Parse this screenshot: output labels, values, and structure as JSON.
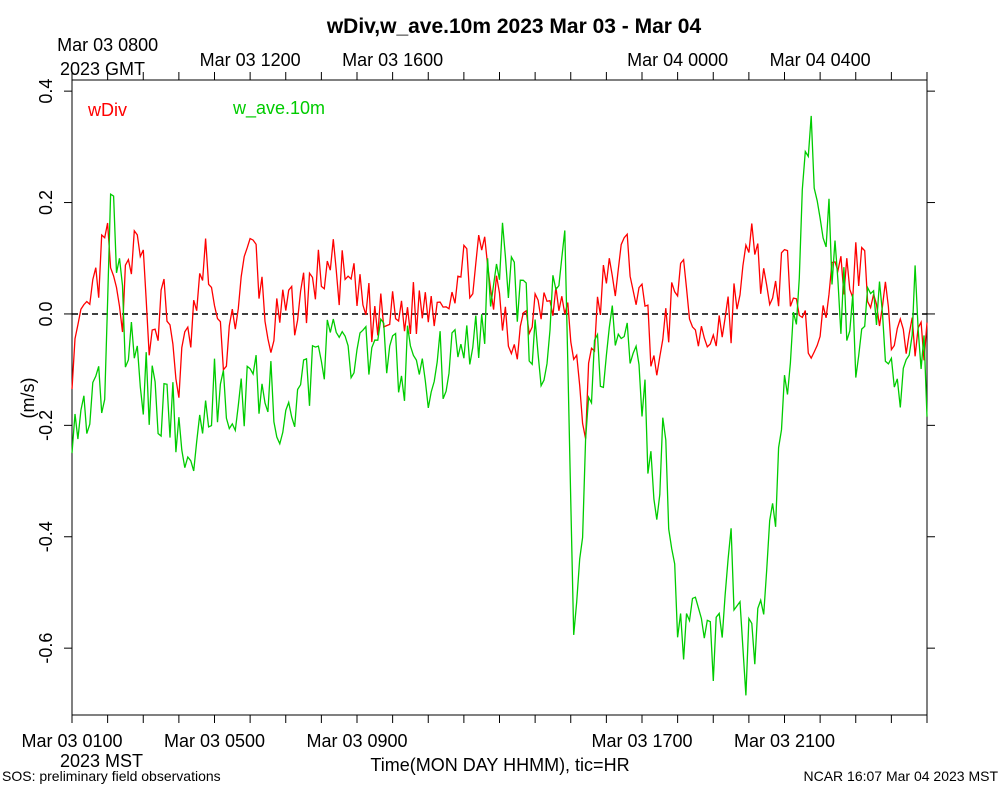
{
  "chart_data": {
    "type": "line",
    "title": "wDiv,w_ave.10m 2023 Mar 03 - Mar 04",
    "xlabel": "Time(MON DAY HHMM), tic=HR",
    "ylabel": "(m/s)",
    "ylim": [
      -0.72,
      0.42
    ],
    "yticks": [
      -0.6,
      -0.4,
      -0.2,
      0.0,
      0.2,
      0.4
    ],
    "ytick_labels": [
      "-0.6",
      "-0.4",
      "-0.2",
      "0.0",
      "0.2",
      "0.4"
    ],
    "zero_line": 0.0,
    "x_hours_range": [
      0,
      24
    ],
    "x_minor_tick_hours": [
      0,
      1,
      2,
      3,
      4,
      5,
      6,
      7,
      8,
      9,
      10,
      11,
      12,
      13,
      14,
      15,
      16,
      17,
      18,
      19,
      20,
      21,
      22,
      23,
      24
    ],
    "bottom_axis": {
      "labels": [
        {
          "hour": 0,
          "text": "Mar 03 0100"
        },
        {
          "hour": 4,
          "text": "Mar 03 0500"
        },
        {
          "hour": 8,
          "text": "Mar 03 0900"
        },
        {
          "hour": 16,
          "text": "Mar 03 1700"
        },
        {
          "hour": 20,
          "text": "Mar 03 2100"
        }
      ],
      "zone_label": "2023 MST"
    },
    "top_axis": {
      "labels": [
        {
          "hour": 1,
          "text": "Mar 03 0800"
        },
        {
          "hour": 5,
          "text": "Mar 03 1200"
        },
        {
          "hour": 9,
          "text": "Mar 03 1600"
        },
        {
          "hour": 17,
          "text": "Mar 04 0000"
        },
        {
          "hour": 21,
          "text": "Mar 04 0400"
        }
      ],
      "zone_label": "2023 GMT"
    },
    "series": [
      {
        "name": "wDiv",
        "color": "#ff0000",
        "keypoints": [
          [
            0.0,
            -0.08
          ],
          [
            0.4,
            -0.02
          ],
          [
            1.0,
            0.13
          ],
          [
            1.3,
            -0.02
          ],
          [
            2.0,
            0.17
          ],
          [
            2.1,
            -0.05
          ],
          [
            2.6,
            0.02
          ],
          [
            3.0,
            -0.12
          ],
          [
            3.8,
            0.1
          ],
          [
            4.2,
            -0.08
          ],
          [
            5.1,
            0.13
          ],
          [
            5.5,
            -0.04
          ],
          [
            6.5,
            0.03
          ],
          [
            7.2,
            0.09
          ],
          [
            8.0,
            0.03
          ],
          [
            8.6,
            -0.02
          ],
          [
            10.0,
            0.02
          ],
          [
            11.5,
            0.1
          ],
          [
            12.3,
            -0.05
          ],
          [
            13.4,
            0.06
          ],
          [
            14.0,
            -0.03
          ],
          [
            14.4,
            -0.19
          ],
          [
            14.8,
            0.03
          ],
          [
            15.6,
            0.11
          ],
          [
            16.0,
            0.02
          ],
          [
            16.5,
            -0.1
          ],
          [
            17.0,
            0.08
          ],
          [
            17.6,
            -0.05
          ],
          [
            18.5,
            0.0
          ],
          [
            19.2,
            0.14
          ],
          [
            19.6,
            -0.03
          ],
          [
            20.0,
            0.12
          ],
          [
            20.5,
            -0.06
          ],
          [
            21.3,
            0.05
          ],
          [
            22.2,
            0.09
          ],
          [
            23.0,
            -0.02
          ],
          [
            24.0,
            -0.05
          ]
        ],
        "noise_amplitude": 0.055
      },
      {
        "name": "w_ave.10m",
        "color": "#00cc00",
        "keypoints": [
          [
            0.0,
            -0.18
          ],
          [
            0.9,
            -0.13
          ],
          [
            1.1,
            0.2
          ],
          [
            1.5,
            -0.05
          ],
          [
            2.2,
            -0.15
          ],
          [
            3.7,
            -0.24
          ],
          [
            4.2,
            -0.09
          ],
          [
            4.5,
            -0.2
          ],
          [
            5.0,
            -0.1
          ],
          [
            5.9,
            -0.18
          ],
          [
            6.7,
            -0.1
          ],
          [
            8.0,
            -0.04
          ],
          [
            9.0,
            -0.08
          ],
          [
            10.0,
            -0.1
          ],
          [
            11.3,
            -0.08
          ],
          [
            11.9,
            0.12
          ],
          [
            12.5,
            0.05
          ],
          [
            13.2,
            -0.12
          ],
          [
            13.7,
            0.12
          ],
          [
            13.8,
            0.17
          ],
          [
            14.0,
            -0.3
          ],
          [
            14.1,
            -0.57
          ],
          [
            14.6,
            -0.1
          ],
          [
            15.2,
            -0.05
          ],
          [
            16.0,
            -0.12
          ],
          [
            16.4,
            -0.4
          ],
          [
            16.6,
            -0.2
          ],
          [
            17.0,
            -0.6
          ],
          [
            17.5,
            -0.5
          ],
          [
            18.0,
            -0.6
          ],
          [
            18.5,
            -0.45
          ],
          [
            18.9,
            -0.62
          ],
          [
            19.3,
            -0.58
          ],
          [
            19.7,
            -0.35
          ],
          [
            20.3,
            0.0
          ],
          [
            20.6,
            0.25
          ],
          [
            20.7,
            0.33
          ],
          [
            21.1,
            0.2
          ],
          [
            21.5,
            0.05
          ],
          [
            22.0,
            -0.05
          ],
          [
            22.6,
            0.02
          ],
          [
            23.2,
            -0.12
          ],
          [
            23.7,
            0.05
          ],
          [
            24.0,
            -0.13
          ]
        ],
        "noise_amplitude": 0.07
      }
    ],
    "legend": [
      {
        "name": "wDiv",
        "color": "#ff0000"
      },
      {
        "name": "w_ave.10m",
        "color": "#00cc00"
      }
    ],
    "legend_position": "top-left"
  },
  "footer": {
    "left": "SOS: preliminary field observations",
    "right": "NCAR 16:07 Mar 04 2023 MST"
  }
}
